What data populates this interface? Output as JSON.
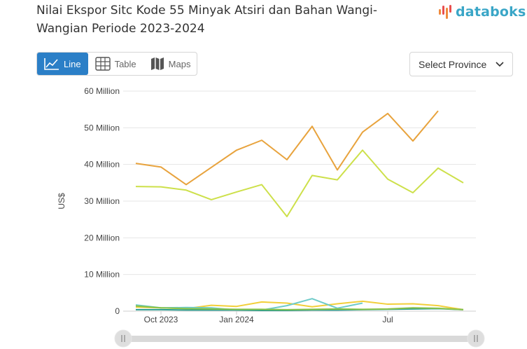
{
  "header": {
    "title": "Nilai Ekspor Sitc Kode 55 Minyak Atsiri dan Bahan Wangi-Wangian Periode 2023-2024",
    "brand": "databoks"
  },
  "tabs": [
    {
      "label": "Line",
      "icon": "line-chart-icon",
      "active": true
    },
    {
      "label": "Table",
      "icon": "table-icon",
      "active": false
    },
    {
      "label": "Maps",
      "icon": "map-icon",
      "active": false
    }
  ],
  "select": {
    "label": "Select Province",
    "icon": "chevron-down-icon"
  },
  "colors": {
    "accent": "#2b7fc7",
    "brand": "#3aa6c7",
    "series": [
      "#e8a33d",
      "#cde04a",
      "#f2cf3a",
      "#6ecbc9",
      "#2a9d8f",
      "#8bc34a"
    ]
  },
  "chart_data": {
    "type": "line",
    "title": "Nilai Ekspor Sitc Kode 55 Minyak Atsiri dan Bahan Wangi-Wangian Periode 2023-2024",
    "xlabel": "",
    "ylabel": "US$",
    "ylim": [
      0,
      60000000
    ],
    "yticks": [
      {
        "value": 0,
        "label": "0"
      },
      {
        "value": 10000000,
        "label": "10 Million"
      },
      {
        "value": 20000000,
        "label": "20 Million"
      },
      {
        "value": 30000000,
        "label": "30 Million"
      },
      {
        "value": 40000000,
        "label": "40 Million"
      },
      {
        "value": 50000000,
        "label": "50 Million"
      },
      {
        "value": 60000000,
        "label": "60 Million"
      }
    ],
    "x": [
      "2023-09",
      "2023-10",
      "2023-11",
      "2023-12",
      "2024-01",
      "2024-02",
      "2024-03",
      "2024-04",
      "2024-05",
      "2024-06",
      "2024-07",
      "2024-08",
      "2024-09",
      "2024-10",
      "2024-11",
      "2024-12"
    ],
    "xticks": [
      {
        "x": "2023-10",
        "label": "Oct 2023"
      },
      {
        "x": "2024-01",
        "label": "Jan 2024"
      },
      {
        "x": "2024-07",
        "label": "Jul"
      }
    ],
    "grid": true,
    "legend": "none",
    "series": [
      {
        "values": [
          40300000,
          39300000,
          34500000,
          39200000,
          43900000,
          46600000,
          41300000,
          50400000,
          38500000,
          48800000,
          53900000,
          46400000,
          54600000,
          null,
          null,
          null
        ]
      },
      {
        "values": [
          34000000,
          33900000,
          33000000,
          30400000,
          32500000,
          34500000,
          25800000,
          37000000,
          35800000,
          43900000,
          36000000,
          32300000,
          39000000,
          35000000,
          null,
          null
        ]
      },
      {
        "values": [
          1100000,
          900000,
          700000,
          1600000,
          1300000,
          2500000,
          2200000,
          1200000,
          2000000,
          2700000,
          1900000,
          2000000,
          1500000,
          400000,
          null,
          null
        ]
      },
      {
        "values": [
          1700000,
          900000,
          1000000,
          900000,
          300000,
          300000,
          1500000,
          3400000,
          800000,
          2200000,
          null,
          null,
          null,
          null,
          null,
          null
        ]
      },
      {
        "values": [
          400000,
          400000,
          300000,
          300000,
          300000,
          200000,
          200000,
          300000,
          300000,
          400000,
          500000,
          600000,
          700000,
          400000,
          null,
          null
        ]
      },
      {
        "values": [
          1400000,
          900000,
          700000,
          600000,
          500000,
          500000,
          400000,
          500000,
          600000,
          500000,
          600000,
          900000,
          800000,
          400000,
          null,
          null
        ]
      }
    ]
  },
  "scrollbar": {
    "left_handle": "drag-handle-icon",
    "right_handle": "drag-handle-icon"
  }
}
